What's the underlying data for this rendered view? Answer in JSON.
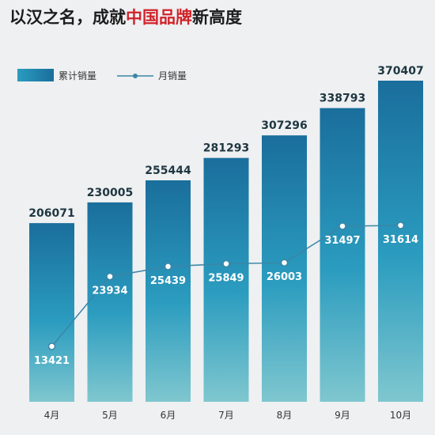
{
  "title": {
    "prefix": "以汉之名，成就",
    "highlight": "中国品牌",
    "suffix": "新高度"
  },
  "colors": {
    "bar_top": "#1a6e9c",
    "bar_mid": "#2b9cbf",
    "bar_bottom": "#7fc7cf",
    "line": "#3a86a6",
    "highlight": "#d2232a"
  },
  "chart_data": {
    "type": "bar",
    "categories": [
      "4月",
      "5月",
      "6月",
      "7月",
      "8月",
      "9月",
      "10月"
    ],
    "series": [
      {
        "name": "累计销量",
        "type": "bar",
        "values": [
          206071,
          230005,
          255444,
          281293,
          307296,
          338793,
          370407
        ]
      },
      {
        "name": "月销量",
        "type": "line",
        "values": [
          13421,
          23934,
          25439,
          25849,
          26003,
          31497,
          31614
        ]
      }
    ],
    "grid": false,
    "legend_position": "top-left"
  }
}
